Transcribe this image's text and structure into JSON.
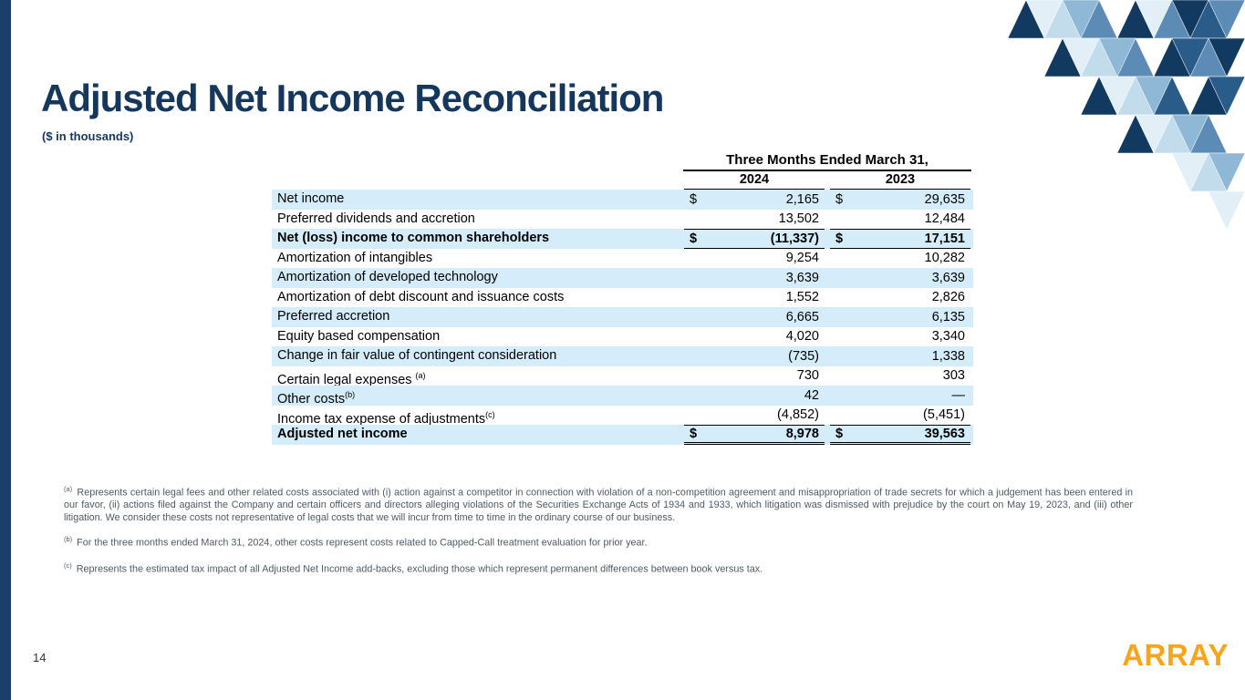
{
  "title": "Adjusted Net Income Reconciliation",
  "subtitle": "($ in thousands)",
  "page_number": "14",
  "logo_text": "ARRAY",
  "theme": {
    "navy": "#16375C",
    "accent_bar": "#1B3E6B",
    "row_shade": "#D5EDFA",
    "logo_orange": "#F9A51B",
    "footnote_gray": "#4E5A66",
    "mosaic_palette": [
      "#12395F",
      "#2A5C8A",
      "#5C8CB5",
      "#8FB8D6",
      "#C2DCEC",
      "#E3EFF7"
    ]
  },
  "table": {
    "group_header": "Three Months Ended March 31,",
    "columns": [
      "2024",
      "2023"
    ],
    "rows": [
      {
        "label": "Net income",
        "sup": "",
        "dollar": true,
        "values": [
          "2,165",
          "29,635"
        ],
        "shaded": true,
        "bold": false,
        "line_top": false,
        "line_bottom": false,
        "line_double": false
      },
      {
        "label": "Preferred dividends and accretion",
        "sup": "",
        "dollar": false,
        "values": [
          "13,502",
          "12,484"
        ],
        "shaded": false,
        "bold": false,
        "line_top": false,
        "line_bottom": false,
        "line_double": false
      },
      {
        "label": "Net (loss) income to common shareholders",
        "sup": "",
        "dollar": true,
        "values": [
          "(11,337)",
          "17,151"
        ],
        "shaded": true,
        "bold": true,
        "line_top": true,
        "line_bottom": true,
        "line_double": false
      },
      {
        "label": "Amortization of intangibles",
        "sup": "",
        "dollar": false,
        "values": [
          "9,254",
          "10,282"
        ],
        "shaded": false,
        "bold": false,
        "line_top": false,
        "line_bottom": false,
        "line_double": false
      },
      {
        "label": "Amortization of developed technology",
        "sup": "",
        "dollar": false,
        "values": [
          "3,639",
          "3,639"
        ],
        "shaded": true,
        "bold": false,
        "line_top": false,
        "line_bottom": false,
        "line_double": false
      },
      {
        "label": "Amortization of debt discount and issuance costs",
        "sup": "",
        "dollar": false,
        "values": [
          "1,552",
          "2,826"
        ],
        "shaded": false,
        "bold": false,
        "line_top": false,
        "line_bottom": false,
        "line_double": false
      },
      {
        "label": "Preferred accretion",
        "sup": "",
        "dollar": false,
        "values": [
          "6,665",
          "6,135"
        ],
        "shaded": true,
        "bold": false,
        "line_top": false,
        "line_bottom": false,
        "line_double": false
      },
      {
        "label": "Equity based compensation",
        "sup": "",
        "dollar": false,
        "values": [
          "4,020",
          "3,340"
        ],
        "shaded": false,
        "bold": false,
        "line_top": false,
        "line_bottom": false,
        "line_double": false
      },
      {
        "label": "Change in fair value of contingent consideration",
        "sup": "",
        "dollar": false,
        "values": [
          "(735)",
          "1,338"
        ],
        "shaded": true,
        "bold": false,
        "line_top": false,
        "line_bottom": false,
        "line_double": false
      },
      {
        "label": "Certain legal expenses ",
        "sup": "(a)",
        "dollar": false,
        "values": [
          "730",
          "303"
        ],
        "shaded": false,
        "bold": false,
        "line_top": false,
        "line_bottom": false,
        "line_double": false
      },
      {
        "label": "Other costs",
        "sup": "(b)",
        "dollar": false,
        "values": [
          "42",
          "—"
        ],
        "shaded": true,
        "bold": false,
        "line_top": false,
        "line_bottom": false,
        "line_double": false
      },
      {
        "label": "Income tax expense of adjustments",
        "sup": "(c)",
        "dollar": false,
        "values": [
          "(4,852)",
          "(5,451)"
        ],
        "shaded": false,
        "bold": false,
        "line_top": false,
        "line_bottom": false,
        "line_double": false
      },
      {
        "label": "Adjusted net income",
        "sup": "",
        "dollar": true,
        "values": [
          "8,978",
          "39,563"
        ],
        "shaded": true,
        "bold": true,
        "line_top": true,
        "line_bottom": false,
        "line_double": true
      }
    ]
  },
  "footnotes": [
    {
      "marker": "(a)",
      "text": "Represents certain legal fees and other related costs associated with (i) action against a competitor in connection with violation of a non-competition agreement and misappropriation of trade secrets for which a judgement has been entered in our favor, (ii) actions filed against the Company and certain officers and directors alleging violations of the Securities Exchange Acts of 1934 and 1933, which litigation was dismissed with prejudice by the court on May 19, 2023, and (iii) other litigation. We consider these costs not representative of legal costs that we will incur from time to time in the ordinary course of our business."
    },
    {
      "marker": "(b)",
      "text": "For the three months ended March 31, 2024, other costs represent costs related to Capped-Call treatment evaluation for prior year."
    },
    {
      "marker": "(c)",
      "text": "Represents the estimated tax impact of all Adjusted Net Income add-backs, excluding those which represent permanent differences between book versus tax."
    }
  ]
}
